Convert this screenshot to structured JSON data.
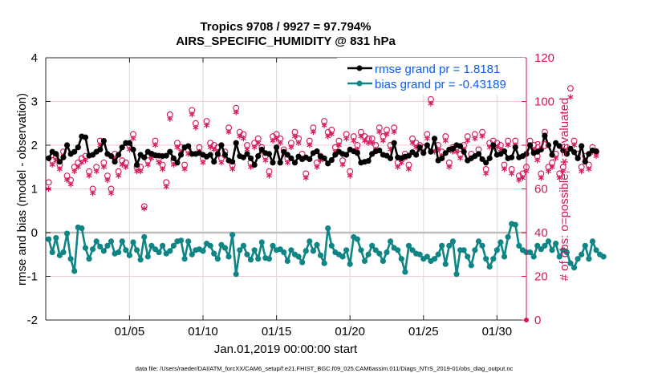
{
  "chart_data": {
    "type": "line",
    "title": "Tropics 9708 / 9927 = 97.794%",
    "subtitle": "AIRS_SPECIFIC_HUMIDITY @ 831 hPa",
    "xlabel": "Jan.01,2019 00:00:00 start",
    "ylabel": "rmse and bias (model - observation)",
    "ylabel_right": "# of obs: o=possible; ∗=evaluated",
    "footnote": "data file: /Users/raeder/DAI/ATM_forcXX/CAM6_setup/f.e21.FHIST_BGC.f09_025.CAM6assim.011/Diags_NTrS_2019-01/obs_diag_output.nc",
    "xlim_days": [
      -1.7,
      31.0
    ],
    "ylim": [
      -2,
      4
    ],
    "ylim_right": [
      0,
      120
    ],
    "xticks": [
      {
        "day": 4,
        "label": "01/05"
      },
      {
        "day": 9,
        "label": "01/10"
      },
      {
        "day": 14,
        "label": "01/15"
      },
      {
        "day": 19,
        "label": "01/20"
      },
      {
        "day": 24,
        "label": "01/25"
      },
      {
        "day": 29,
        "label": "01/30"
      }
    ],
    "yticks": [
      -2,
      -1,
      0,
      1,
      2,
      3,
      4
    ],
    "yticks_right": [
      0,
      20,
      40,
      60,
      80,
      100,
      120
    ],
    "grid": true,
    "legend": {
      "placement": "top-right",
      "entries": [
        {
          "name": "rmse grand pr = 1.8181",
          "color": "#000000"
        },
        {
          "name": "bias grand pr = -0.43189",
          "color": "#0f8585"
        }
      ]
    },
    "colors": {
      "rmse": "#000000",
      "bias": "#0f8585",
      "obs": "#d6135b",
      "zero_line": "#bdbdbd",
      "grid": "#f1c8d6",
      "vgrid": "#d9d9d9"
    },
    "time_step_days": 0.25,
    "start_day": -1.5,
    "series": [
      {
        "name": "rmse",
        "values": [
          1.7,
          1.85,
          1.8,
          1.62,
          1.72,
          2.0,
          1.8,
          1.85,
          1.95,
          2.2,
          2.18,
          1.76,
          1.78,
          1.85,
          1.9,
          2.1,
          1.8,
          1.75,
          1.62,
          1.78,
          1.95,
          2.05,
          2.05,
          1.9,
          1.55,
          1.78,
          1.72,
          1.85,
          1.8,
          1.77,
          1.76,
          1.75,
          1.76,
          1.85,
          1.7,
          1.6,
          1.78,
          1.95,
          1.98,
          1.8,
          1.8,
          1.82,
          1.78,
          1.74,
          1.78,
          1.62,
          1.8,
          2.0,
          1.78,
          1.65,
          1.62,
          2.05,
          1.75,
          1.72,
          1.8,
          1.7,
          1.55,
          1.75,
          1.9,
          1.82,
          1.8,
          1.6,
          1.95,
          1.6,
          1.85,
          1.78,
          1.7,
          1.6,
          1.74,
          1.68,
          1.72,
          1.68,
          1.82,
          1.86,
          1.74,
          1.7,
          1.58,
          1.66,
          1.78,
          1.85,
          1.8,
          1.78,
          1.9,
          1.86,
          1.82,
          1.6,
          1.62,
          1.64,
          1.8,
          1.86,
          1.88,
          1.78,
          1.76,
          1.7,
          2.05,
          1.72,
          1.7,
          1.74,
          1.76,
          1.84,
          1.78,
          1.95,
          1.82,
          2.0,
          1.85,
          2.15,
          1.65,
          1.7,
          1.82,
          1.9,
          1.92,
          2.0,
          1.98,
          1.85,
          1.65,
          1.7,
          1.75,
          1.8,
          1.68,
          1.6,
          1.7,
          2.0,
          1.78,
          1.8,
          1.86,
          1.7,
          1.72,
          1.95,
          1.72,
          1.75,
          1.8,
          2.0,
          1.82,
          1.85,
          1.9,
          2.22,
          2.0,
          1.78,
          2.05,
          1.98,
          1.88,
          1.8,
          1.92,
          1.84,
          1.7,
          1.98,
          1.62,
          1.8,
          1.88,
          1.86
        ],
        "marker": "filled-circle-star"
      },
      {
        "name": "bias",
        "values": [
          -0.15,
          -0.45,
          -0.12,
          -0.52,
          -0.45,
          -0.02,
          -0.6,
          -0.88,
          0.12,
          0.1,
          -0.35,
          -0.6,
          -0.38,
          -0.2,
          -0.32,
          -0.42,
          -0.3,
          -0.2,
          -0.48,
          -0.45,
          -0.2,
          -0.4,
          -0.52,
          -0.22,
          -0.4,
          -0.62,
          -0.1,
          -0.55,
          -0.3,
          -0.38,
          -0.45,
          -0.3,
          -0.48,
          -0.42,
          -0.3,
          -0.2,
          -0.18,
          -0.6,
          -0.2,
          -0.5,
          -0.4,
          -0.38,
          -0.42,
          -0.25,
          -0.3,
          -0.48,
          -0.6,
          -0.28,
          -0.35,
          -0.55,
          -0.05,
          -0.95,
          -0.4,
          -0.3,
          -0.5,
          -0.62,
          -0.4,
          -0.6,
          -0.22,
          -0.58,
          -0.6,
          -0.3,
          -0.4,
          -0.38,
          -0.45,
          -0.65,
          -0.4,
          -0.5,
          -0.55,
          -0.68,
          -0.42,
          -0.2,
          -0.42,
          -0.28,
          -0.52,
          -0.7,
          0.1,
          -0.3,
          -0.45,
          -0.5,
          -0.55,
          -0.4,
          -0.72,
          -0.1,
          -0.15,
          -0.4,
          -0.65,
          -0.5,
          -0.3,
          -0.4,
          -0.48,
          -0.65,
          -0.45,
          -0.2,
          -0.35,
          -0.4,
          -0.6,
          -0.9,
          -0.3,
          -0.4,
          -0.48,
          -0.5,
          -0.6,
          -0.55,
          -0.65,
          -0.6,
          -0.5,
          -0.3,
          -0.72,
          -0.3,
          -0.2,
          -0.95,
          -0.4,
          -0.4,
          -0.55,
          -0.75,
          -0.4,
          -0.2,
          -0.3,
          -0.6,
          -0.78,
          -0.6,
          -0.4,
          -0.22,
          -0.55,
          -0.1,
          0.2,
          0.18,
          -0.3,
          -0.4,
          -0.45,
          -0.45,
          -0.55,
          -0.3,
          -0.38,
          -0.3,
          -0.2,
          -0.4,
          -0.25,
          -0.55,
          -0.4,
          -0.45,
          -0.7,
          -0.8,
          -0.6,
          -0.5,
          -0.3,
          -0.6,
          -0.2,
          -0.4,
          -0.5,
          -0.55
        ],
        "marker": "filled-circle"
      }
    ],
    "obs_possible": [
      63,
      73,
      75,
      71,
      77,
      66,
      64,
      70,
      72,
      74,
      75,
      68,
      60,
      70,
      82,
      72,
      66,
      60,
      76,
      68,
      73,
      72,
      80,
      85,
      70,
      70,
      52,
      73,
      76,
      82,
      74,
      71,
      63,
      94,
      73,
      81,
      79,
      71,
      78,
      96,
      90,
      79,
      74,
      91,
      81,
      80,
      79,
      74,
      77,
      88,
      71,
      97,
      86,
      85,
      80,
      72,
      81,
      83,
      79,
      75,
      68,
      84,
      85,
      83,
      78,
      74,
      81,
      86,
      83,
      76,
      67,
      82,
      88,
      72,
      75,
      91,
      86,
      87,
      79,
      82,
      73,
      85,
      68,
      84,
      80,
      86,
      84,
      83,
      83,
      80,
      88,
      84,
      87,
      80,
      88,
      72,
      74,
      76,
      71,
      83,
      81,
      80,
      79,
      85,
      101,
      79,
      80,
      77,
      84,
      72,
      79,
      79,
      76,
      80,
      84,
      76,
      85,
      78,
      86,
      69,
      81,
      82,
      81,
      80,
      71,
      82,
      69,
      82,
      66,
      67,
      70,
      82,
      80,
      75,
      67,
      86,
      70,
      72,
      76,
      67,
      70,
      79,
      106,
      82,
      76,
      70,
      75,
      71,
      79,
      77
    ],
    "obs_evaluated": [
      60,
      71,
      73,
      69,
      75,
      64,
      62,
      68,
      70,
      72,
      73,
      66,
      58,
      68,
      80,
      70,
      64,
      58,
      74,
      66,
      71,
      70,
      78,
      83,
      68,
      68,
      51,
      71,
      74,
      80,
      72,
      69,
      61,
      92,
      71,
      79,
      77,
      69,
      76,
      94,
      88,
      77,
      72,
      89,
      79,
      78,
      77,
      72,
      75,
      86,
      69,
      95,
      84,
      83,
      78,
      70,
      79,
      81,
      77,
      73,
      66,
      82,
      83,
      81,
      76,
      72,
      79,
      84,
      81,
      74,
      65,
      80,
      86,
      70,
      73,
      89,
      84,
      85,
      77,
      80,
      71,
      83,
      66,
      82,
      78,
      84,
      82,
      81,
      81,
      78,
      86,
      82,
      85,
      78,
      86,
      70,
      72,
      74,
      69,
      81,
      79,
      78,
      77,
      83,
      99,
      77,
      78,
      75,
      82,
      70,
      77,
      77,
      74,
      78,
      82,
      74,
      83,
      76,
      84,
      67,
      79,
      80,
      79,
      78,
      69,
      80,
      67,
      80,
      64,
      65,
      68,
      80,
      78,
      73,
      65,
      84,
      68,
      70,
      74,
      65,
      68,
      77,
      102,
      80,
      74,
      68,
      73,
      69,
      77,
      75
    ]
  }
}
